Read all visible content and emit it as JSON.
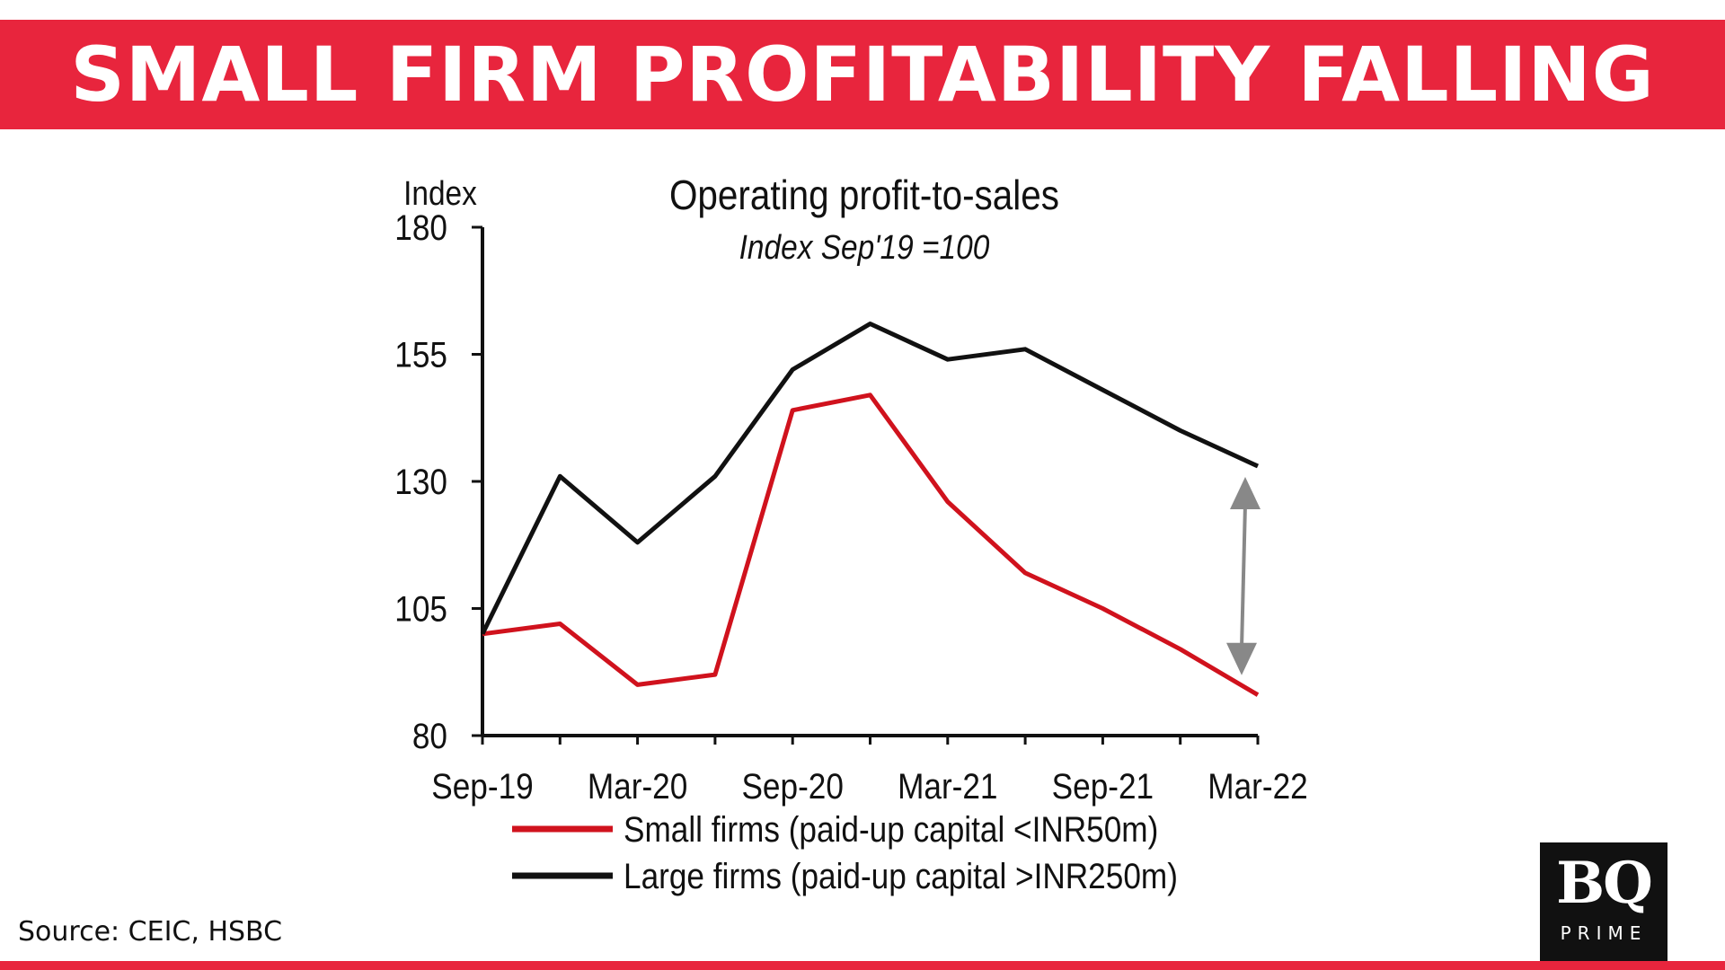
{
  "banner": {
    "title": "SMALL FIRM PROFITABILITY FALLING"
  },
  "source": "Source: CEIC, HSBC",
  "logo": {
    "mark": "BQ",
    "sub": "PRIME"
  },
  "colors": {
    "accent": "#e8253d",
    "small_series": "#d0121d",
    "large_series": "#111111",
    "arrow": "#888888"
  },
  "chart_data": {
    "type": "line",
    "title": "Operating profit-to-sales",
    "subtitle": "Index Sep'19 =100",
    "ylabel": "Index",
    "xlabel": "",
    "ylim": [
      80,
      180
    ],
    "yticks": [
      80,
      105,
      130,
      155,
      180
    ],
    "x": [
      "Sep-19",
      "Dec-19",
      "Mar-20",
      "Jun-20",
      "Sep-20",
      "Dec-20",
      "Mar-21",
      "Jun-21",
      "Sep-21",
      "Dec-21",
      "Mar-22"
    ],
    "xtick_labels": [
      "Sep-19",
      "Mar-20",
      "Sep-20",
      "Mar-21",
      "Sep-21",
      "Mar-22"
    ],
    "series": [
      {
        "name": "Small firms (paid-up capital <INR50m)",
        "color": "#d0121d",
        "values": [
          100,
          102,
          90,
          92,
          144,
          147,
          126,
          112,
          105,
          97,
          88
        ]
      },
      {
        "name": "Large firms (paid-up capital >INR250m)",
        "color": "#111111",
        "values": [
          100,
          131,
          118,
          131,
          152,
          161,
          154,
          156,
          148,
          140,
          133
        ]
      }
    ],
    "annotation": "double-headed arrow marking the gap at Mar-22",
    "legend_position": "bottom",
    "grid": false
  }
}
